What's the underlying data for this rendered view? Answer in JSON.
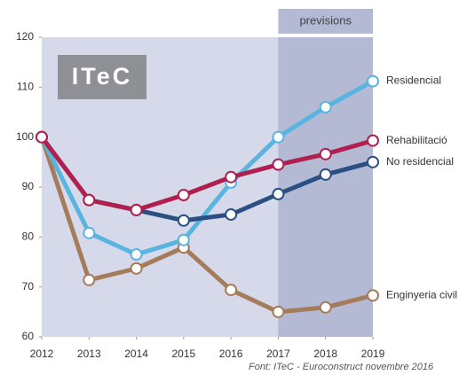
{
  "chart_data": {
    "type": "line",
    "logo": "ITeC",
    "source": "Font: ITeC - Euroconstruct novembre 2016",
    "forecast": {
      "label": "previsions",
      "from": 2017,
      "to": 2019
    },
    "x": [
      2012,
      2013,
      2014,
      2015,
      2016,
      2017,
      2018,
      2019
    ],
    "xlim": [
      2012,
      2019
    ],
    "xticks": [
      2012,
      2013,
      2014,
      2015,
      2016,
      2017,
      2018,
      2019
    ],
    "ylim": [
      60,
      120
    ],
    "yticks": [
      60,
      70,
      80,
      90,
      100,
      110,
      120
    ],
    "series": [
      {
        "name": "Enginyeria civil",
        "color": "#a57c5b",
        "values": [
          100,
          71.4,
          73.7,
          77.9,
          69.4,
          65,
          65.9,
          68.3
        ]
      },
      {
        "name": "Residencial",
        "color": "#5ab4e0",
        "values": [
          100,
          80.8,
          76.5,
          79.4,
          90.9,
          100,
          106,
          111.2
        ]
      },
      {
        "name": "No residencial",
        "color": "#2b4f83",
        "values": [
          100,
          87.4,
          85.4,
          83.3,
          84.5,
          88.6,
          92.5,
          95
        ]
      },
      {
        "name": "Rehabilitació",
        "color": "#b0204f",
        "values": [
          100,
          87.4,
          85.4,
          88.4,
          92,
          94.5,
          96.6,
          99.3
        ]
      }
    ]
  }
}
